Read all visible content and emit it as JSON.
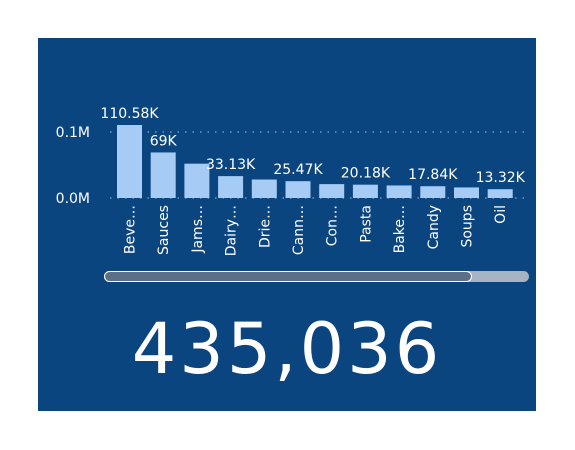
{
  "chart_data": {
    "type": "bar",
    "categories": [
      "Beve…",
      "Sauces",
      "Jams…",
      "Dairy…",
      "Drie…",
      "Cann…",
      "Con…",
      "Pasta",
      "Bake…",
      "Candy",
      "Soups",
      "Oil"
    ],
    "values": [
      110580,
      69000,
      52000,
      33130,
      28000,
      25470,
      21000,
      20180,
      19000,
      17840,
      16000,
      13320
    ],
    "data_labels": [
      "110.58K",
      "69K",
      "",
      "33.13K",
      "",
      "25.47K",
      "",
      "20.18K",
      "",
      "17.84K",
      "",
      "13.32K"
    ],
    "yticks": [
      {
        "value": 0,
        "label": "0.0M"
      },
      {
        "value": 100000,
        "label": "0.1M"
      }
    ],
    "ylim": [
      0,
      110580
    ],
    "grid": true,
    "colors": {
      "bar": "#a6ccf5",
      "grid": "#8aa3c4",
      "text": "#ffffff",
      "background": "#0b4580"
    }
  },
  "kpi": {
    "value": "435,036"
  },
  "scrollbar": {
    "position": 0,
    "visible_fraction": 0.86
  }
}
